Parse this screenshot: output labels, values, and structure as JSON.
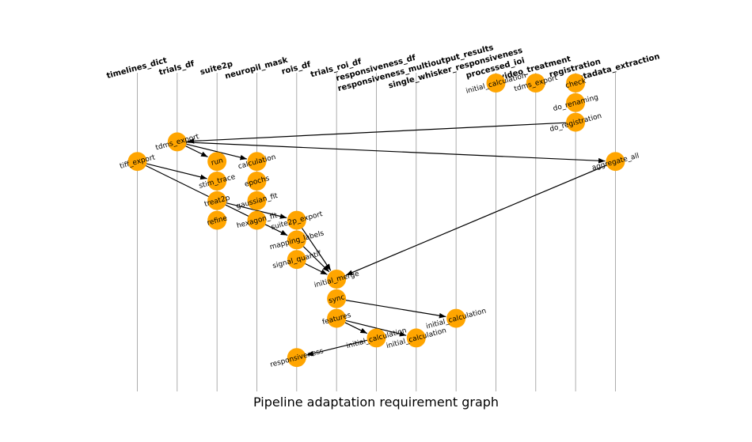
{
  "title": "Pipeline adaptation requirement graph",
  "colors": {
    "node_fill": "#FFA500",
    "edge": "#000000",
    "column_line": "#999999",
    "background": "#FFFFFF"
  },
  "columns": [
    "timelines_dict",
    "trials_df",
    "suite2p",
    "neuropil_mask",
    "rois_df",
    "trials_roi_df",
    "responsiveness_df",
    "responsiveness_multioutput_results",
    "single_whisker_responsiveness",
    "processed_ioi",
    "video_treatment",
    "registration",
    "metadata_extraction"
  ],
  "nodes": [
    {
      "id": "initial_calculation_pioi",
      "label": "initial_calculation",
      "column": 9,
      "level": 0
    },
    {
      "id": "tdms_export_video",
      "label": "tdms_export",
      "column": 10,
      "level": 0
    },
    {
      "id": "check",
      "label": "check",
      "column": 11,
      "level": 0
    },
    {
      "id": "do_renaming",
      "label": "do_renaming",
      "column": 11,
      "level": 1
    },
    {
      "id": "do_registration",
      "label": "do_registration",
      "column": 11,
      "level": 2
    },
    {
      "id": "tdms_export",
      "label": "tdms_export",
      "column": 1,
      "level": 3
    },
    {
      "id": "tiff_export",
      "label": "tiff_export",
      "column": 0,
      "level": 4
    },
    {
      "id": "run",
      "label": "run",
      "column": 2,
      "level": 4
    },
    {
      "id": "calculation",
      "label": "calculation",
      "column": 3,
      "level": 4
    },
    {
      "id": "aggregate_all",
      "label": "aggregate_all",
      "column": 12,
      "level": 4
    },
    {
      "id": "stim_trace",
      "label": "stim_trace",
      "column": 2,
      "level": 5
    },
    {
      "id": "epochs",
      "label": "epochs",
      "column": 3,
      "level": 5
    },
    {
      "id": "treat2p",
      "label": "treat2p",
      "column": 2,
      "level": 6
    },
    {
      "id": "gaussian_fit",
      "label": "gaussian_fit",
      "column": 3,
      "level": 6
    },
    {
      "id": "refine",
      "label": "refine",
      "column": 2,
      "level": 7
    },
    {
      "id": "hexagon_fit",
      "label": "hexagon_fit",
      "column": 3,
      "level": 7
    },
    {
      "id": "suite2p_export",
      "label": "suite2p_export",
      "column": 4,
      "level": 7
    },
    {
      "id": "mapping_labels",
      "label": "mapping_labels",
      "column": 4,
      "level": 8
    },
    {
      "id": "signal_quantif",
      "label": "signal_quantif",
      "column": 4,
      "level": 9
    },
    {
      "id": "initial_merge",
      "label": "initial_merge",
      "column": 5,
      "level": 10
    },
    {
      "id": "sync",
      "label": "sync",
      "column": 5,
      "level": 11
    },
    {
      "id": "features",
      "label": "features",
      "column": 5,
      "level": 12
    },
    {
      "id": "initial_calculation_swr",
      "label": "initial_calculation",
      "column": 8,
      "level": 12
    },
    {
      "id": "initial_calculation_rdf",
      "label": "initial_calculation",
      "column": 6,
      "level": 13
    },
    {
      "id": "initial_calculation_rmor",
      "label": "initial_calculation",
      "column": 7,
      "level": 13
    },
    {
      "id": "responsiveness",
      "label": "responsiveness",
      "column": 4,
      "level": 14
    }
  ],
  "edges": [
    [
      "do_registration",
      "tdms_export"
    ],
    [
      "tdms_export",
      "aggregate_all"
    ],
    [
      "tdms_export",
      "run"
    ],
    [
      "tdms_export",
      "calculation"
    ],
    [
      "tiff_export",
      "stim_trace"
    ],
    [
      "tiff_export",
      "mapping_labels"
    ],
    [
      "treat2p",
      "suite2p_export"
    ],
    [
      "suite2p_export",
      "initial_merge"
    ],
    [
      "mapping_labels",
      "initial_merge"
    ],
    [
      "signal_quantif",
      "initial_merge"
    ],
    [
      "aggregate_all",
      "initial_merge"
    ],
    [
      "sync",
      "initial_calculation_swr"
    ],
    [
      "features",
      "initial_calculation_rdf"
    ],
    [
      "features",
      "initial_calculation_rmor"
    ],
    [
      "initial_calculation_rdf",
      "responsiveness"
    ]
  ]
}
